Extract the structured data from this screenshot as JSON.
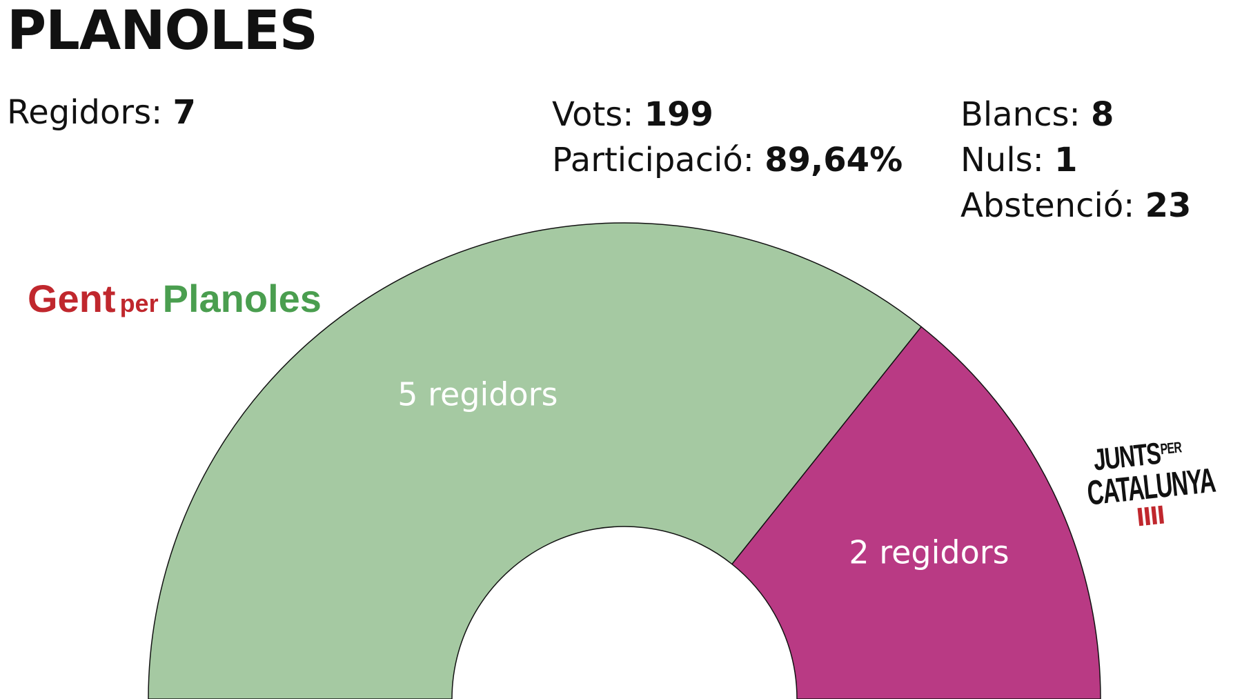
{
  "title": "PLANOLES",
  "stats": {
    "regidors_label": "Regidors:",
    "regidors_value": "7",
    "vots_label": "Vots:",
    "vots_value": "199",
    "participacio_label": "Participació:",
    "participacio_value": "89,64%",
    "blancs_label": "Blancs:",
    "blancs_value": "8",
    "nuls_label": "Nuls:",
    "nuls_value": "1",
    "abstencio_label": "Abstenció:",
    "abstencio_value": "23"
  },
  "logos": {
    "gent_per_planoles": {
      "word1": "Gent",
      "word2": "per",
      "word3": "Planoles"
    },
    "junts_per_catalunya": {
      "line1": "JUNTS",
      "line1_small": "PER",
      "line2": "CATALUNYA"
    }
  },
  "colors": {
    "gent_per_planoles": "#a5c9a2",
    "junts_per_catalunya": "#b93a84",
    "gent_red": "#c0272d",
    "gent_green": "#4a9e4f"
  },
  "chart_data": {
    "type": "pie",
    "subtype": "semicircle-parliament",
    "total_seats": 7,
    "series": [
      {
        "name": "Gent per Planoles",
        "seats": 5,
        "label": "5 regidors",
        "color": "#a5c9a2"
      },
      {
        "name": "Junts per Catalunya",
        "seats": 2,
        "label": "2 regidors",
        "color": "#b93a84"
      }
    ]
  }
}
